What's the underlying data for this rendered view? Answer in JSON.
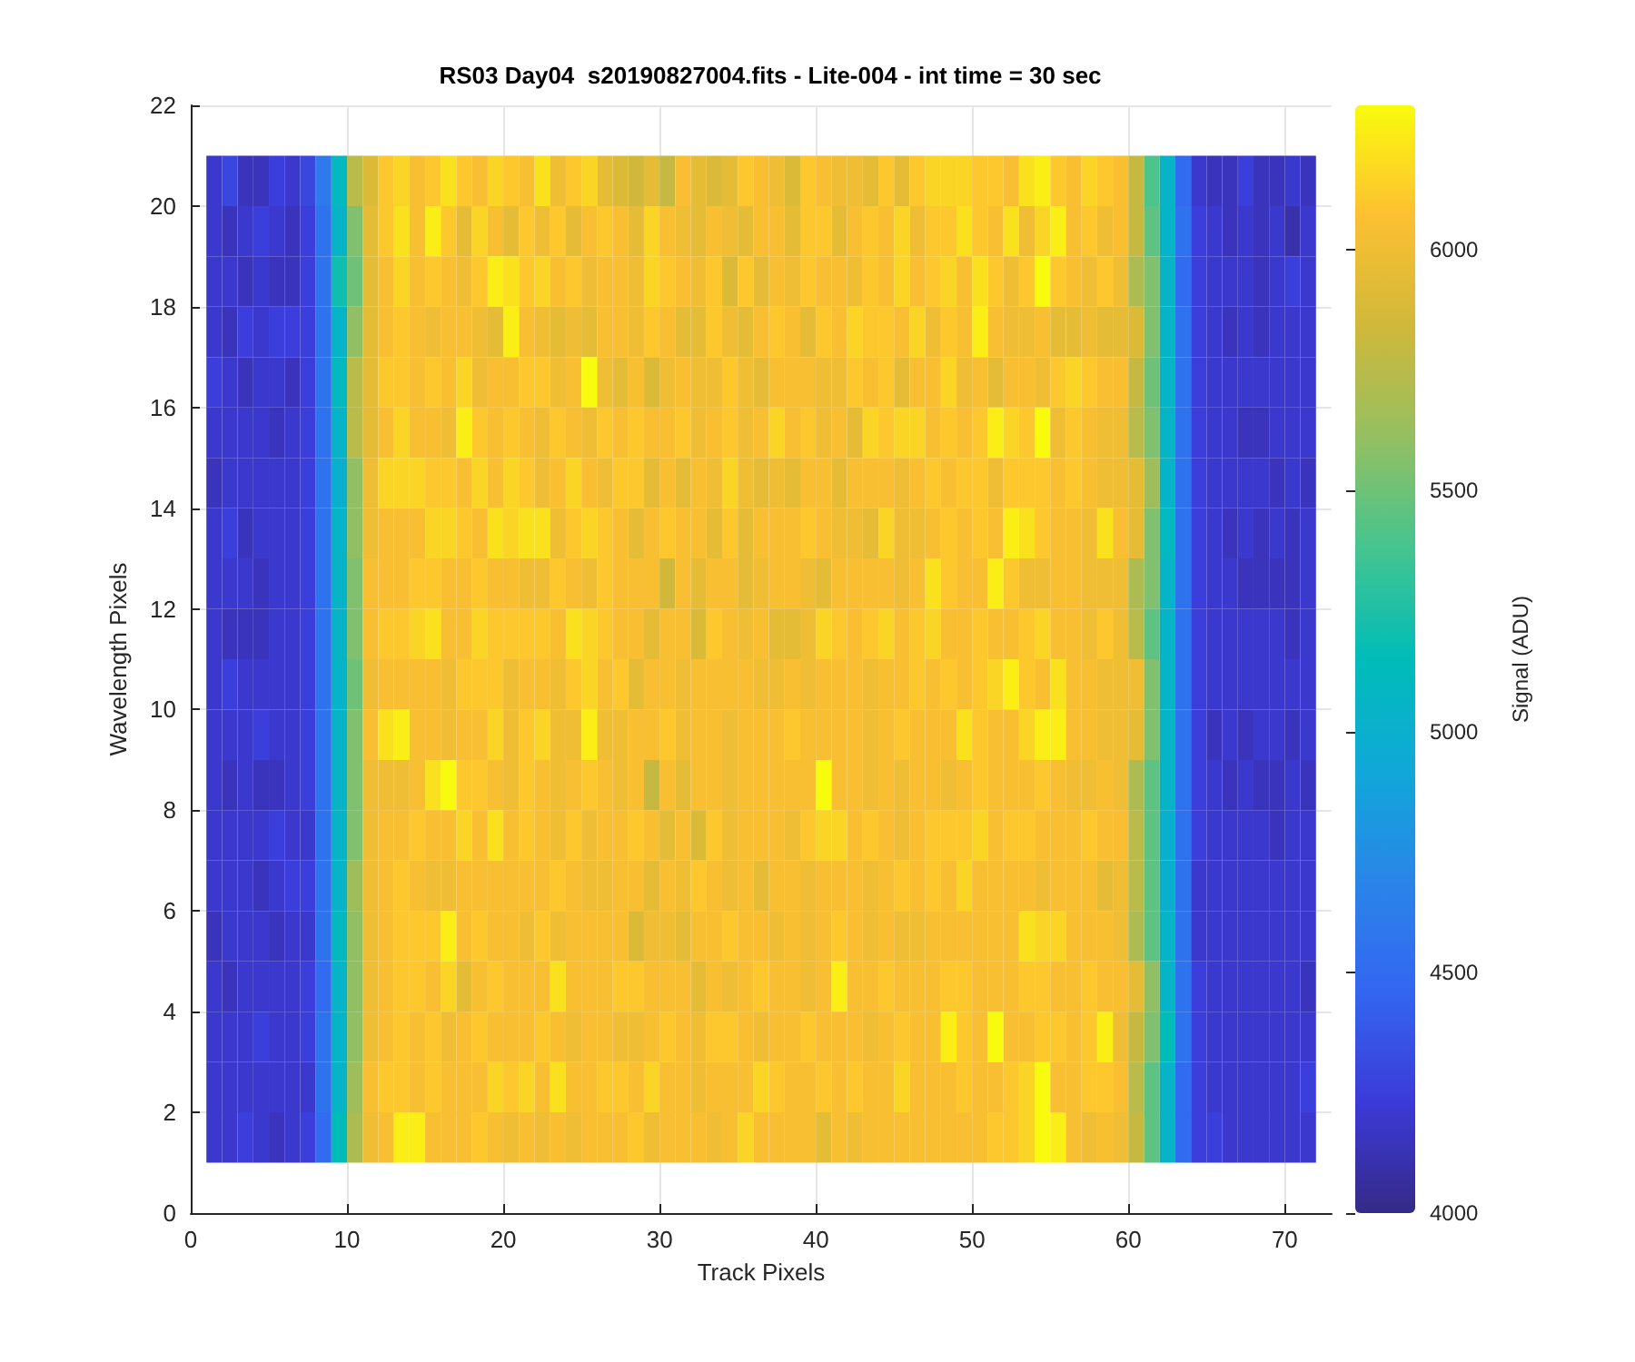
{
  "chart_data": {
    "type": "heatmap",
    "title": "RS03 Day04  s20190827004.fits - Lite-004 - int time = 30 sec",
    "xlabel": "Track Pixels",
    "ylabel": "Wavelength Pixels",
    "clabel": "Signal (ADU)",
    "xlim": [
      0,
      73
    ],
    "xticks": [
      0,
      10,
      20,
      30,
      40,
      50,
      60,
      70
    ],
    "ylim": [
      0,
      22
    ],
    "yticks": [
      0,
      2,
      4,
      6,
      8,
      10,
      12,
      14,
      16,
      18,
      20,
      22
    ],
    "grid": true,
    "clim": [
      4000,
      6300
    ],
    "cticks": [
      4000,
      4500,
      5000,
      5500,
      6000
    ],
    "x": [
      1.5,
      2.5,
      3.5,
      4.5,
      5.5,
      6.5,
      7.5,
      8.5,
      9.5,
      10.5,
      11.5,
      12.5,
      13.5,
      14.5,
      15.5,
      16.5,
      17.5,
      18.5,
      19.5,
      20.5,
      21.5,
      22.5,
      23.5,
      24.5,
      25.5,
      26.5,
      27.5,
      28.5,
      29.5,
      30.5,
      31.5,
      32.5,
      33.5,
      34.5,
      35.5,
      36.5,
      37.5,
      38.5,
      39.5,
      40.5,
      41.5,
      42.5,
      43.5,
      44.5,
      45.5,
      46.5,
      47.5,
      48.5,
      49.5,
      50.5,
      51.5,
      52.5,
      53.5,
      54.5,
      55.5,
      56.5,
      57.5,
      58.5,
      59.5,
      60.5,
      61.5,
      62.5,
      63.5,
      64.5,
      65.5,
      66.5,
      67.5,
      68.5,
      69.5,
      70.5,
      71.5
    ],
    "y": [
      20.5,
      19.5,
      18.5,
      17.5,
      16.5,
      15.5,
      14.5,
      13.5,
      12.5,
      11.5,
      10.5,
      9.5,
      8.5,
      7.5,
      6.5,
      5.5,
      4.5,
      3.5,
      2.5,
      1.5
    ],
    "cells": [
      [
        4200,
        4300,
        4150,
        4150,
        4250,
        4200,
        4300,
        4600,
        5100,
        5750,
        5900,
        6100,
        6150,
        6050,
        6100,
        6200,
        6100,
        6050,
        6150,
        6100,
        6050,
        6200,
        6000,
        6100,
        6150,
        5950,
        5900,
        5850,
        5950,
        5800,
        6050,
        5950,
        5900,
        5950,
        6100,
        6050,
        6000,
        5900,
        6100,
        6050,
        6000,
        6000,
        5950,
        6100,
        5950,
        6100,
        6150,
        6150,
        6150,
        6100,
        6100,
        6050,
        6200,
        6250,
        6100,
        6050,
        6150,
        6100,
        6050,
        5800,
        5400,
        5050,
        4500,
        4200,
        4150,
        4150,
        4250,
        4150,
        4150,
        4200,
        4150
      ],
      [
        4200,
        4150,
        4200,
        4250,
        4200,
        4150,
        4250,
        4550,
        5050,
        5550,
        5950,
        6100,
        6200,
        6050,
        6250,
        6100,
        5950,
        6150,
        6050,
        5950,
        6100,
        6000,
        6100,
        5950,
        6050,
        6100,
        6050,
        5950,
        6150,
        6050,
        6000,
        5950,
        6050,
        6000,
        5950,
        6050,
        6050,
        5950,
        6100,
        6100,
        5950,
        6050,
        6100,
        6050,
        6150,
        6000,
        6100,
        6100,
        6200,
        6100,
        6050,
        6200,
        6000,
        6150,
        6250,
        6050,
        6100,
        6000,
        6050,
        5800,
        5450,
        5050,
        4550,
        4250,
        4200,
        4150,
        4200,
        4150,
        4200,
        4100,
        4200
      ],
      [
        4200,
        4200,
        4150,
        4200,
        4150,
        4150,
        4250,
        4550,
        5200,
        5500,
        5950,
        6050,
        6150,
        6050,
        6100,
        6050,
        6000,
        6100,
        6250,
        6200,
        6100,
        6150,
        6050,
        6100,
        6000,
        6050,
        6050,
        6000,
        6150,
        6100,
        6050,
        6000,
        6100,
        5900,
        6100,
        5950,
        6050,
        6000,
        6100,
        6050,
        6050,
        6000,
        6100,
        6050,
        6150,
        6050,
        6100,
        6150,
        6050,
        6200,
        6100,
        6000,
        6100,
        6300,
        6100,
        6050,
        6000,
        6100,
        6000,
        5700,
        5550,
        5050,
        4500,
        4250,
        4200,
        4200,
        4200,
        4150,
        4200,
        4250,
        4200
      ],
      [
        4200,
        4150,
        4250,
        4200,
        4250,
        4250,
        4250,
        4550,
        5050,
        5600,
        5950,
        6050,
        6100,
        6050,
        6000,
        6050,
        6050,
        6000,
        5950,
        6250,
        6050,
        6000,
        5950,
        6000,
        5950,
        6050,
        6050,
        6000,
        6100,
        6050,
        5950,
        5950,
        6100,
        6000,
        5950,
        6050,
        6100,
        6050,
        5950,
        6100,
        6050,
        6150,
        6100,
        6100,
        6050,
        6150,
        6000,
        6100,
        6050,
        6250,
        6050,
        6000,
        6000,
        6050,
        5950,
        5950,
        6000,
        5950,
        5950,
        5900,
        5550,
        5050,
        4550,
        4250,
        4200,
        4150,
        4200,
        4150,
        4200,
        4200,
        4200
      ],
      [
        4250,
        4200,
        4150,
        4200,
        4200,
        4150,
        4250,
        4550,
        5100,
        5750,
        5950,
        6100,
        6100,
        6050,
        6100,
        6050,
        6150,
        6000,
        6050,
        6050,
        6100,
        6100,
        6000,
        6050,
        6300,
        6000,
        5950,
        6050,
        5900,
        6000,
        6050,
        6000,
        6000,
        6100,
        6000,
        5950,
        6050,
        6050,
        6050,
        6000,
        6000,
        6100,
        6050,
        6100,
        5950,
        6050,
        6050,
        6150,
        6000,
        6050,
        5950,
        6050,
        6050,
        6000,
        6100,
        6150,
        6100,
        6050,
        6050,
        5800,
        5500,
        5050,
        4550,
        4250,
        4200,
        4200,
        4200,
        4200,
        4200,
        4200,
        4200
      ],
      [
        4200,
        4200,
        4200,
        4200,
        4150,
        4200,
        4250,
        4550,
        5050,
        5750,
        5950,
        6050,
        6150,
        6050,
        6050,
        6000,
        6250,
        6100,
        6050,
        6100,
        6050,
        6000,
        6100,
        6050,
        6000,
        6100,
        6050,
        6100,
        6050,
        6050,
        6100,
        6000,
        6050,
        6100,
        6000,
        6050,
        6150,
        6050,
        6100,
        6000,
        6050,
        5950,
        6150,
        6100,
        6150,
        6150,
        6050,
        6100,
        6050,
        6100,
        6250,
        6150,
        6100,
        6300,
        6000,
        6100,
        6050,
        6000,
        6000,
        5750,
        5550,
        5050,
        4550,
        4250,
        4200,
        4200,
        4150,
        4150,
        4200,
        4200,
        4200
      ],
      [
        4150,
        4200,
        4200,
        4200,
        4200,
        4200,
        4250,
        4550,
        5000,
        5600,
        6000,
        6150,
        6150,
        6150,
        6100,
        6100,
        6050,
        6150,
        6050,
        6150,
        6100,
        6000,
        6050,
        6150,
        6050,
        6000,
        6100,
        6100,
        5950,
        6050,
        5950,
        6050,
        6000,
        6150,
        6000,
        5950,
        6000,
        5950,
        6050,
        6050,
        5950,
        6050,
        6050,
        6050,
        6000,
        6050,
        6100,
        6050,
        6100,
        6100,
        6000,
        6100,
        6100,
        6100,
        6050,
        6100,
        6050,
        6000,
        6000,
        5950,
        5650,
        5050,
        4550,
        4250,
        4200,
        4200,
        4200,
        4200,
        4150,
        4200,
        4150
      ],
      [
        4200,
        4250,
        4150,
        4200,
        4200,
        4200,
        4250,
        4550,
        5050,
        5600,
        6000,
        6050,
        6050,
        6050,
        6150,
        6150,
        6100,
        6050,
        6200,
        6150,
        6200,
        6200,
        6000,
        6100,
        6150,
        6100,
        6050,
        5950,
        6050,
        6100,
        6050,
        6050,
        5950,
        6100,
        5950,
        6050,
        6050,
        6050,
        6100,
        6050,
        6000,
        6000,
        5950,
        6150,
        6000,
        6000,
        6050,
        6100,
        6050,
        6100,
        6050,
        6250,
        6200,
        6100,
        6050,
        6050,
        6000,
        6200,
        6050,
        5950,
        5550,
        5100,
        4550,
        4250,
        4200,
        4150,
        4200,
        4150,
        4200,
        4150,
        4200
      ],
      [
        4200,
        4200,
        4200,
        4150,
        4200,
        4200,
        4250,
        4550,
        5050,
        5550,
        6050,
        6050,
        6050,
        6100,
        6100,
        6050,
        6050,
        6100,
        6050,
        6050,
        6000,
        6000,
        6100,
        6050,
        6000,
        6100,
        6050,
        6050,
        6050,
        5850,
        6050,
        5950,
        6050,
        6050,
        5950,
        6000,
        6050,
        6050,
        6000,
        5950,
        6050,
        6050,
        6050,
        6050,
        6000,
        6050,
        6200,
        6100,
        6050,
        6050,
        6250,
        6100,
        6000,
        6000,
        6050,
        6050,
        6000,
        6000,
        6000,
        5700,
        5550,
        5050,
        4550,
        4250,
        4200,
        4200,
        4150,
        4150,
        4150,
        4150,
        4200
      ],
      [
        4200,
        4150,
        4150,
        4150,
        4200,
        4200,
        4250,
        4550,
        5050,
        5550,
        6050,
        6100,
        6100,
        6150,
        6200,
        6050,
        6050,
        6150,
        6100,
        6100,
        6100,
        6100,
        6050,
        6200,
        6150,
        6100,
        6050,
        6050,
        5950,
        6050,
        6050,
        5900,
        6100,
        6050,
        6000,
        6050,
        5950,
        5950,
        6000,
        6150,
        6100,
        6050,
        6100,
        6150,
        6050,
        6100,
        6150,
        6050,
        6050,
        6100,
        6050,
        6050,
        6100,
        6150,
        6050,
        6050,
        6000,
        6100,
        6000,
        5750,
        5450,
        5050,
        4550,
        4250,
        4200,
        4200,
        4200,
        4200,
        4200,
        4150,
        4200
      ],
      [
        4200,
        4250,
        4200,
        4200,
        4200,
        4200,
        4250,
        4550,
        5050,
        5500,
        6000,
        6050,
        6050,
        6050,
        6050,
        6000,
        6100,
        6100,
        6100,
        6000,
        6050,
        6050,
        6000,
        6100,
        6150,
        6050,
        6100,
        5950,
        6050,
        6050,
        6000,
        6050,
        6050,
        6050,
        6050,
        6000,
        6000,
        6050,
        6000,
        6050,
        6050,
        6050,
        6000,
        6050,
        6050,
        6100,
        6050,
        6100,
        6050,
        6100,
        6150,
        6250,
        6100,
        6050,
        6200,
        6050,
        6050,
        6000,
        6000,
        6000,
        5550,
        5050,
        4550,
        4250,
        4200,
        4200,
        4200,
        4200,
        4200,
        4200,
        4200
      ],
      [
        4200,
        4200,
        4200,
        4250,
        4200,
        4200,
        4250,
        4550,
        5050,
        5550,
        6050,
        6200,
        6250,
        6050,
        6050,
        6000,
        6050,
        6050,
        6150,
        6000,
        6100,
        6150,
        6000,
        6000,
        6250,
        6000,
        6000,
        6050,
        6050,
        6100,
        6000,
        6050,
        6050,
        6000,
        6050,
        6050,
        6050,
        6100,
        6050,
        6050,
        6050,
        6050,
        6000,
        6050,
        6100,
        6050,
        6050,
        6050,
        6200,
        6100,
        6050,
        6050,
        6150,
        6250,
        6250,
        6050,
        6050,
        6000,
        6000,
        5950,
        5550,
        5050,
        4550,
        4250,
        4150,
        4200,
        4150,
        4200,
        4200,
        4150,
        4200
      ],
      [
        4200,
        4150,
        4200,
        4150,
        4150,
        4200,
        4250,
        4550,
        5050,
        5550,
        6000,
        6000,
        6000,
        6050,
        6200,
        6300,
        6100,
        6100,
        6050,
        6000,
        6100,
        6050,
        6000,
        6050,
        6100,
        6050,
        6000,
        6050,
        5800,
        6050,
        5950,
        6050,
        6050,
        6000,
        6050,
        6050,
        6050,
        6050,
        6050,
        6300,
        6050,
        6050,
        6000,
        6050,
        6000,
        6050,
        6050,
        6000,
        6050,
        6100,
        6050,
        6050,
        6050,
        6100,
        6050,
        6000,
        6000,
        6050,
        6000,
        5700,
        5450,
        5050,
        4550,
        4250,
        4200,
        4150,
        4200,
        4150,
        4150,
        4200,
        4150
      ],
      [
        4200,
        4200,
        4200,
        4200,
        4250,
        4200,
        4200,
        4550,
        5050,
        5550,
        6000,
        6050,
        6050,
        6100,
        6050,
        6050,
        6150,
        6050,
        6200,
        6050,
        6100,
        6050,
        6000,
        6100,
        6000,
        6050,
        6050,
        6100,
        6050,
        5950,
        6050,
        5900,
        6100,
        6000,
        6050,
        6050,
        6050,
        6000,
        6100,
        6150,
        6150,
        6050,
        6100,
        6050,
        6000,
        6050,
        6100,
        6100,
        6100,
        6150,
        6050,
        6100,
        6100,
        6050,
        6050,
        6050,
        6100,
        6050,
        6050,
        5750,
        5450,
        5000,
        4550,
        4250,
        4200,
        4200,
        4200,
        4200,
        4150,
        4200,
        4200
      ],
      [
        4200,
        4200,
        4200,
        4150,
        4200,
        4250,
        4250,
        4550,
        5050,
        5650,
        6000,
        6050,
        6100,
        6050,
        6000,
        6000,
        6050,
        6050,
        6050,
        6050,
        6050,
        6050,
        6100,
        6050,
        6000,
        6000,
        6050,
        6050,
        5950,
        6050,
        6000,
        6100,
        6050,
        6000,
        6050,
        5950,
        6050,
        6050,
        6000,
        6050,
        6050,
        6050,
        6000,
        6050,
        6100,
        6050,
        6100,
        6050,
        6150,
        6050,
        6050,
        6050,
        6050,
        6000,
        6050,
        6050,
        6050,
        5950,
        6000,
        5750,
        5450,
        5000,
        4550,
        4200,
        4200,
        4200,
        4200,
        4200,
        4200,
        4200,
        4200
      ],
      [
        4150,
        4200,
        4200,
        4200,
        4150,
        4200,
        4200,
        4550,
        5100,
        5600,
        6000,
        6050,
        6100,
        6100,
        6100,
        6250,
        6050,
        6100,
        6050,
        6050,
        6000,
        6100,
        6000,
        6050,
        6050,
        6050,
        6050,
        5900,
        6000,
        6000,
        5950,
        6050,
        6050,
        6100,
        6050,
        6050,
        6000,
        6050,
        6000,
        6050,
        6100,
        6050,
        6000,
        6050,
        6000,
        6000,
        6050,
        6050,
        6050,
        6050,
        6050,
        6050,
        6200,
        6150,
        6150,
        6050,
        6050,
        6050,
        6000,
        5700,
        5450,
        5050,
        4550,
        4200,
        4200,
        4200,
        4200,
        4200,
        4200,
        4200,
        4200
      ],
      [
        4200,
        4150,
        4200,
        4200,
        4200,
        4200,
        4250,
        4500,
        5050,
        5600,
        6000,
        6050,
        6100,
        6100,
        6050,
        6150,
        5950,
        6050,
        6100,
        6050,
        6050,
        6050,
        6200,
        6050,
        6050,
        6050,
        6100,
        6100,
        6050,
        6050,
        6050,
        5950,
        6050,
        6000,
        6050,
        6100,
        6050,
        6050,
        6000,
        6050,
        6250,
        6050,
        6050,
        6100,
        6050,
        6050,
        6050,
        6100,
        6100,
        6050,
        6050,
        6050,
        6100,
        6100,
        6050,
        6050,
        6100,
        6050,
        6050,
        5950,
        5600,
        5050,
        4550,
        4250,
        4200,
        4200,
        4200,
        4200,
        4200,
        4200,
        4150
      ],
      [
        4200,
        4200,
        4200,
        4250,
        4200,
        4200,
        4250,
        4550,
        5050,
        5600,
        6000,
        6050,
        6100,
        6050,
        6100,
        6000,
        6050,
        6100,
        6050,
        6050,
        6050,
        6100,
        6050,
        6000,
        6050,
        6050,
        6000,
        6000,
        6050,
        6100,
        6050,
        6000,
        6100,
        6100,
        6050,
        6000,
        6050,
        6050,
        6100,
        6050,
        6050,
        6050,
        6000,
        6050,
        6100,
        6050,
        6050,
        6250,
        6100,
        6050,
        6300,
        6050,
        6050,
        6100,
        6100,
        6050,
        6100,
        6250,
        6000,
        5800,
        5550,
        5150,
        4550,
        4250,
        4200,
        4200,
        4200,
        4200,
        4200,
        4200,
        4200
      ],
      [
        4200,
        4200,
        4200,
        4200,
        4200,
        4200,
        4200,
        4550,
        5050,
        5650,
        6050,
        6100,
        6100,
        6050,
        6100,
        6050,
        6050,
        6050,
        6150,
        6100,
        6150,
        6050,
        6200,
        6050,
        6050,
        6100,
        6100,
        6050,
        6150,
        6050,
        6050,
        6000,
        6050,
        6050,
        6050,
        6150,
        6100,
        6050,
        6050,
        6100,
        6050,
        6100,
        6050,
        6050,
        6150,
        6050,
        6050,
        6050,
        6100,
        6050,
        6050,
        6100,
        6150,
        6300,
        6050,
        6050,
        6100,
        6100,
        6050,
        5750,
        5450,
        5050,
        4500,
        4250,
        4200,
        4200,
        4200,
        4200,
        4200,
        4200,
        4250
      ],
      [
        4200,
        4200,
        4250,
        4200,
        4150,
        4200,
        4250,
        4500,
        5150,
        5700,
        6000,
        6050,
        6250,
        6250,
        6050,
        6050,
        6050,
        6100,
        6050,
        6000,
        6050,
        6000,
        6050,
        6000,
        6050,
        6050,
        6050,
        6100,
        6000,
        6050,
        6050,
        6050,
        6000,
        6050,
        6150,
        6050,
        6050,
        6050,
        6050,
        5950,
        6050,
        6000,
        6050,
        6050,
        6050,
        6050,
        6050,
        6050,
        6050,
        6050,
        6100,
        6100,
        6150,
        6300,
        6250,
        6050,
        6000,
        6050,
        6000,
        5800,
        5450,
        5050,
        4500,
        4250,
        4250,
        4200,
        4200,
        4200,
        4200,
        4200,
        4200
      ]
    ]
  }
}
